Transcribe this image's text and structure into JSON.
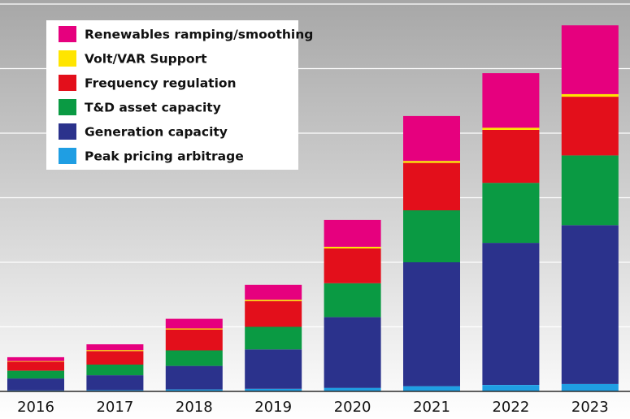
{
  "chart_data": {
    "type": "bar",
    "stacked": true,
    "categories": [
      "2016",
      "2017",
      "2018",
      "2019",
      "2020",
      "2021",
      "2022",
      "2023"
    ],
    "series": [
      {
        "name": "Peak pricing arbitrage",
        "color": "#1f9ee3",
        "values": [
          0.3,
          0.4,
          0.6,
          0.8,
          1.1,
          1.6,
          2.0,
          2.3
        ]
      },
      {
        "name": "Generation capacity",
        "color": "#2b328c",
        "values": [
          3.7,
          4.6,
          7.3,
          12.2,
          21.9,
          38.4,
          44.0,
          49.2
        ]
      },
      {
        "name": "T&D asset capacity",
        "color": "#0a9a43",
        "values": [
          2.4,
          3.3,
          4.8,
          7.0,
          10.5,
          16.1,
          18.6,
          21.6
        ]
      },
      {
        "name": "Frequency regulation",
        "color": "#e30f1b",
        "values": [
          2.8,
          4.2,
          6.5,
          8.0,
          10.8,
          14.7,
          16.4,
          18.2
        ]
      },
      {
        "name": "Volt/VAR Support",
        "color": "#ffe500",
        "values": [
          0.2,
          0.3,
          0.3,
          0.4,
          0.5,
          0.6,
          0.7,
          0.8
        ]
      },
      {
        "name": "Renewables ramping/smoothing",
        "color": "#e6007e",
        "values": [
          1.2,
          1.8,
          3.0,
          4.6,
          8.3,
          13.9,
          16.9,
          21.3
        ]
      }
    ],
    "ylim": [
      0,
      120
    ],
    "grid": true,
    "legend_position": "top-left",
    "title": "",
    "xlabel": "",
    "ylabel": ""
  },
  "colors": {
    "background_top": "#a7a7a7",
    "background_bottom": "#ffffff",
    "gridline": "#ffffff",
    "baseline": "#2b2b2b"
  }
}
